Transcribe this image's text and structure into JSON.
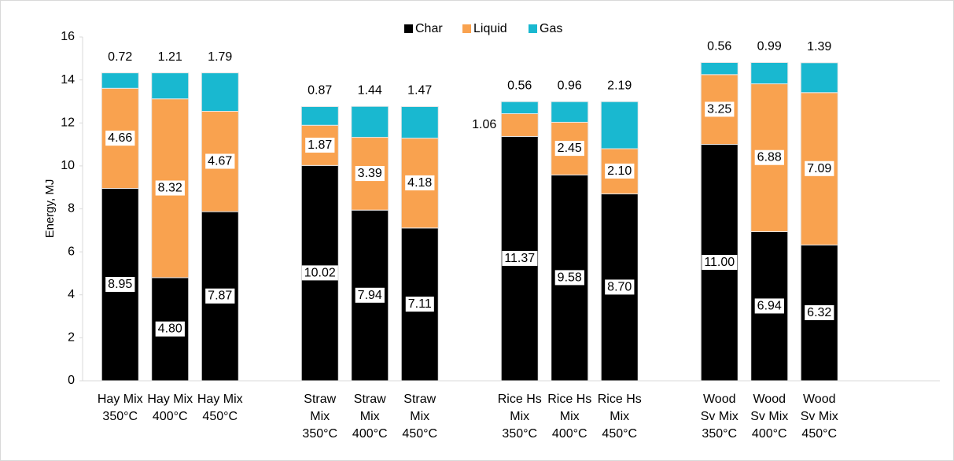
{
  "chart_data": {
    "type": "stacked-bar",
    "y_label": "Energy, MJ",
    "categories": [
      "Hay Mix\n350°C",
      "Hay Mix\n400°C",
      "Hay Mix\n450°C",
      null,
      "Straw\nMix\n350°C",
      "Straw\nMix\n400°C",
      "Straw\nMix\n450°C",
      null,
      "Rice Hs\nMix\n350°C",
      "Rice Hs\nMix\n400°C",
      "Rice Hs\nMix\n450°C",
      null,
      "Wood\nSv Mix\n350°C",
      "Wood\nSv Mix\n400°C",
      "Wood\nSv Mix\n450°C"
    ],
    "series": [
      {
        "name": "Char",
        "color": "#000000",
        "values": [
          8.95,
          4.8,
          7.87,
          null,
          10.02,
          7.94,
          7.11,
          null,
          11.37,
          9.58,
          8.7,
          null,
          11.0,
          6.94,
          6.32
        ],
        "value_labels": [
          "8.95",
          "4.80",
          "7.87",
          null,
          "10.02",
          "7.94",
          "7.11",
          null,
          "11.37",
          "9.58",
          "8.70",
          null,
          "11.00",
          "6.94",
          "6.32"
        ]
      },
      {
        "name": "Liquid",
        "color": "#f9a24f",
        "values": [
          4.66,
          8.32,
          4.67,
          null,
          1.87,
          3.39,
          4.18,
          null,
          1.06,
          2.45,
          2.1,
          null,
          3.25,
          6.88,
          7.09
        ],
        "value_labels": [
          "4.66",
          "8.32",
          "4.67",
          null,
          "1.87",
          "3.39",
          "4.18",
          null,
          "1.06",
          "2.45",
          "2.10",
          null,
          "3.25",
          "6.88",
          "7.09"
        ]
      },
      {
        "name": "Gas",
        "color": "#19b8d0",
        "values": [
          0.72,
          1.21,
          1.79,
          null,
          0.87,
          1.44,
          1.47,
          null,
          0.56,
          0.96,
          2.19,
          null,
          0.56,
          0.99,
          1.39
        ],
        "value_labels": [
          "0.72",
          "1.21",
          "1.79",
          null,
          "0.87",
          "1.44",
          "1.47",
          null,
          "0.56",
          "0.96",
          "2.19",
          null,
          "0.56",
          "0.99",
          "1.39"
        ]
      }
    ],
    "ylim": [
      0,
      16
    ],
    "yticks": [
      0,
      2,
      4,
      6,
      8,
      10,
      12,
      14,
      16
    ],
    "legend": "top",
    "grid": false
  }
}
